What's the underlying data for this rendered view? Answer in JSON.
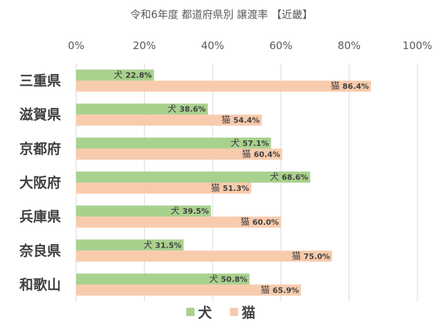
{
  "chart_data": {
    "type": "bar",
    "orientation": "horizontal",
    "title": "令和6年度 都道府県別 譲渡率 【近畿】",
    "categories": [
      "三重県",
      "滋賀県",
      "京都府",
      "大阪府",
      "兵庫県",
      "奈良県",
      "和歌山"
    ],
    "series": [
      {
        "name": "犬",
        "label_prefix": "犬",
        "values": [
          22.8,
          38.6,
          57.1,
          68.6,
          39.5,
          31.5,
          50.8
        ],
        "color": "#A9D18E"
      },
      {
        "name": "猫",
        "label_prefix": "猫",
        "values": [
          86.4,
          54.4,
          60.4,
          51.3,
          60.0,
          75.0,
          65.9
        ],
        "color": "#F8CBAD"
      }
    ],
    "xlim": [
      0,
      100
    ],
    "xticks": [
      0,
      20,
      40,
      60,
      80,
      100
    ],
    "xtick_labels": [
      "0%",
      "20%",
      "40%",
      "60%",
      "80%",
      "100%"
    ],
    "value_suffix": "%",
    "grid": true,
    "legend_position": "bottom-center",
    "xlabel": "",
    "ylabel": ""
  }
}
